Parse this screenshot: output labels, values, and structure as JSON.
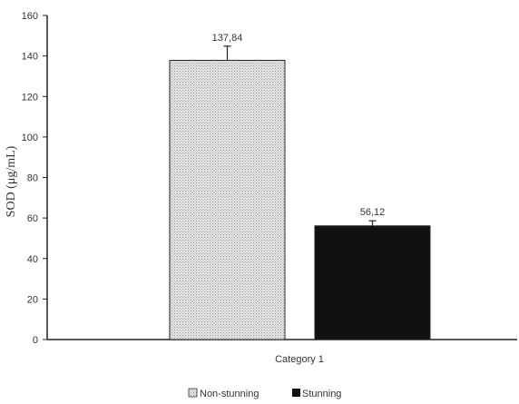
{
  "chart_data": {
    "type": "bar",
    "categories": [
      "Category 1"
    ],
    "series": [
      {
        "name": "Non-stunning",
        "values": [
          137.84
        ],
        "error": [
          7
        ],
        "label": "137,84",
        "color": "#dcdcdc",
        "pattern": "dotted-gray"
      },
      {
        "name": "Stunning",
        "values": [
          56.12
        ],
        "error": [
          2.5
        ],
        "label": "56,12",
        "color": "#111111",
        "pattern": "solid-black"
      }
    ],
    "title": "",
    "xlabel": "",
    "ylabel": "SOD (μg/mL)",
    "ylim": [
      0,
      160
    ],
    "yticks": [
      "0",
      "20",
      "40",
      "60",
      "80",
      "100",
      "120",
      "140",
      "160"
    ],
    "grid": false,
    "legend_position": "bottom-center"
  }
}
